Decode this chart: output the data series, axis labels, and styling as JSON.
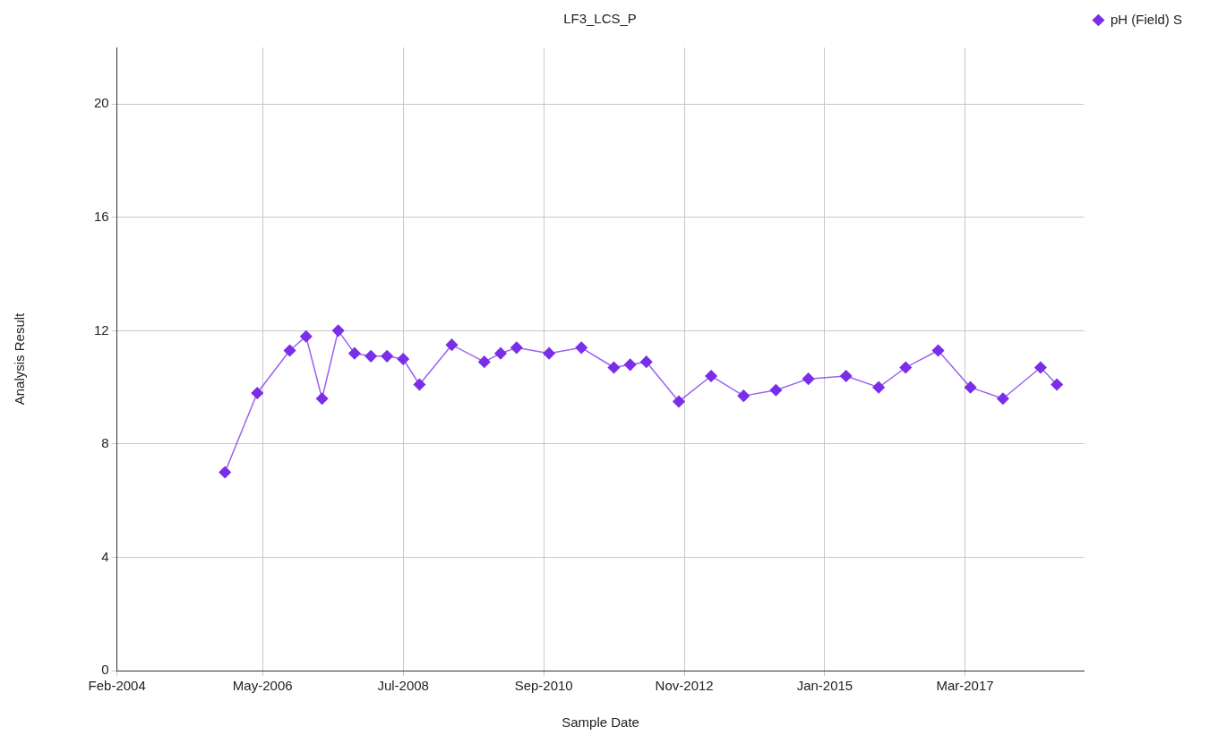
{
  "chart_data": {
    "type": "line",
    "title": "LF3_LCS_P",
    "xlabel": "Sample Date",
    "ylabel": "Analysis Result",
    "x": [
      "2005-10",
      "2006-04",
      "2006-10",
      "2007-01",
      "2007-04",
      "2007-07",
      "2007-10",
      "2008-01",
      "2008-04",
      "2008-07",
      "2008-10",
      "2009-04",
      "2009-10",
      "2010-01",
      "2010-04",
      "2010-10",
      "2011-04",
      "2011-10",
      "2012-01",
      "2012-04",
      "2012-10",
      "2013-04",
      "2013-10",
      "2014-04",
      "2014-10",
      "2015-05",
      "2015-11",
      "2016-04",
      "2016-10",
      "2017-04",
      "2017-10",
      "2018-05",
      "2018-08"
    ],
    "series": [
      {
        "name": "pH (Field) S",
        "color": "#7b2ee8",
        "values": [
          7.0,
          9.8,
          11.3,
          11.8,
          9.6,
          12.0,
          11.2,
          11.1,
          11.1,
          11.0,
          10.1,
          11.5,
          10.9,
          11.2,
          11.4,
          11.2,
          11.4,
          10.7,
          10.8,
          10.9,
          9.5,
          10.4,
          9.7,
          9.9,
          10.3,
          10.4,
          10.0,
          10.7,
          11.3,
          10.0,
          9.6,
          10.7,
          10.1
        ]
      }
    ],
    "xlim": [
      "2004-02",
      "2019-01"
    ],
    "xticks": [
      {
        "value": "2004-02",
        "label": "Feb-2004"
      },
      {
        "value": "2006-05",
        "label": "May-2006"
      },
      {
        "value": "2008-07",
        "label": "Jul-2008"
      },
      {
        "value": "2010-09",
        "label": "Sep-2010"
      },
      {
        "value": "2012-11",
        "label": "Nov-2012"
      },
      {
        "value": "2015-01",
        "label": "Jan-2015"
      },
      {
        "value": "2017-03",
        "label": "Mar-2017"
      }
    ],
    "ylim": [
      0,
      22
    ],
    "yticks": [
      0,
      4,
      8,
      12,
      16,
      20
    ],
    "grid": true,
    "legend": "top right",
    "marker": "diamond",
    "line_style": "solid"
  }
}
